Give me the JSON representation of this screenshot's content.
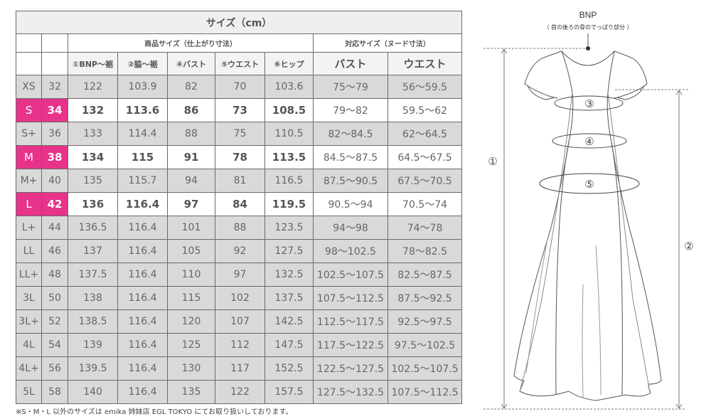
{
  "table": {
    "title": "サイズ（cm）",
    "group_headers": [
      "商品サイズ（仕上がり寸法）",
      "対応サイズ（ヌード寸法）"
    ],
    "columns": [
      "①BNP〜裾",
      "②脇〜裾",
      "④バスト",
      "⑤ウエスト",
      "⑥ヒップ",
      "バスト",
      "ウエスト"
    ],
    "highlight_color": "#e8338b",
    "rows": [
      {
        "size": "XS",
        "num": "32",
        "values": [
          "122",
          "103.9",
          "82",
          "70",
          "103.6",
          "75〜79",
          "56〜59.5"
        ],
        "highlight": false
      },
      {
        "size": "S",
        "num": "34",
        "values": [
          "132",
          "113.6",
          "86",
          "73",
          "108.5",
          "79〜82",
          "59.5〜62"
        ],
        "highlight": true
      },
      {
        "size": "S+",
        "num": "36",
        "values": [
          "133",
          "114.4",
          "88",
          "75",
          "110.5",
          "82〜84.5",
          "62〜64.5"
        ],
        "highlight": false
      },
      {
        "size": "M",
        "num": "38",
        "values": [
          "134",
          "115",
          "91",
          "78",
          "113.5",
          "84.5〜87.5",
          "64.5〜67.5"
        ],
        "highlight": true
      },
      {
        "size": "M+",
        "num": "40",
        "values": [
          "135",
          "115.7",
          "94",
          "81",
          "116.5",
          "87.5〜90.5",
          "67.5〜70.5"
        ],
        "highlight": false
      },
      {
        "size": "L",
        "num": "42",
        "values": [
          "136",
          "116.4",
          "97",
          "84",
          "119.5",
          "90.5〜94",
          "70.5〜74"
        ],
        "highlight": true
      },
      {
        "size": "L+",
        "num": "44",
        "values": [
          "136.5",
          "116.4",
          "101",
          "88",
          "123.5",
          "94〜98",
          "74〜78"
        ],
        "highlight": false
      },
      {
        "size": "LL",
        "num": "46",
        "values": [
          "137",
          "116.4",
          "105",
          "92",
          "127.5",
          "98〜102.5",
          "78〜82.5"
        ],
        "highlight": false
      },
      {
        "size": "LL+",
        "num": "48",
        "values": [
          "137.5",
          "116.4",
          "110",
          "97",
          "132.5",
          "102.5〜107.5",
          "82.5〜87.5"
        ],
        "highlight": false
      },
      {
        "size": "3L",
        "num": "50",
        "values": [
          "138",
          "116.4",
          "115",
          "102",
          "137.5",
          "107.5〜112.5",
          "87.5〜92.5"
        ],
        "highlight": false
      },
      {
        "size": "3L+",
        "num": "52",
        "values": [
          "138.5",
          "116.4",
          "120",
          "107",
          "142.5",
          "112.5〜117.5",
          "92.5〜97.5"
        ],
        "highlight": false
      },
      {
        "size": "4L",
        "num": "54",
        "values": [
          "139",
          "116.4",
          "125",
          "112",
          "147.5",
          "117.5〜122.5",
          "97.5〜102.5"
        ],
        "highlight": false
      },
      {
        "size": "4L+",
        "num": "56",
        "values": [
          "139.5",
          "116.4",
          "130",
          "117",
          "152.5",
          "122.5〜127.5",
          "102.5〜107.5"
        ],
        "highlight": false
      },
      {
        "size": "5L",
        "num": "58",
        "values": [
          "140",
          "116.4",
          "135",
          "122",
          "157.5",
          "127.5〜132.5",
          "107.5〜112.5"
        ],
        "highlight": false
      }
    ]
  },
  "note": "※S・M・L 以外のサイズは emika 姉妹店 EGL TOKYO にてお取り扱いしております。",
  "diagram": {
    "bnp_label": "BNP",
    "bnp_desc": "（ 首の後ろの骨のでっぱり部分 ）",
    "markers": [
      "①",
      "②",
      "③",
      "④",
      "⑤"
    ]
  }
}
